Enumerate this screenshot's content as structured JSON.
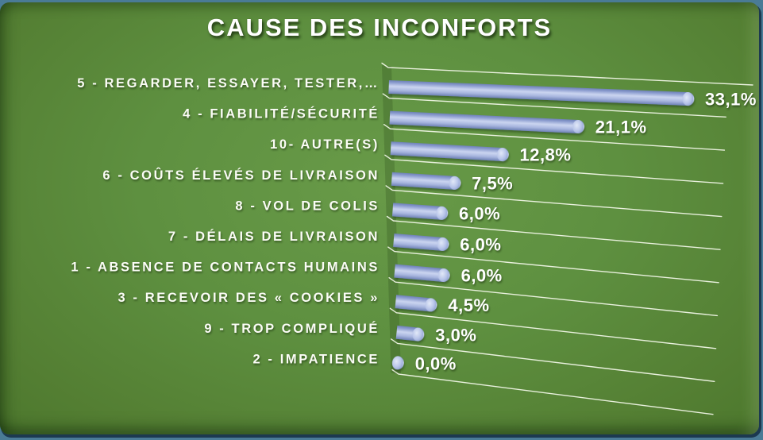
{
  "title": "CAUSE DES INCONFORTS",
  "colors": {
    "slide_background": "#4a7b96",
    "panel_green_center": "#689a48",
    "panel_green_mid": "#5e9040",
    "panel_green_edge": "#4b762c",
    "gridline": "#f0f5e6",
    "bar_body_dark": "#6e81b6",
    "bar_body_mid": "#8a9bce",
    "bar_body_light": "#cbd5f0",
    "bar_body_lower": "#a8b6df",
    "cap_light": "#e2e9f8",
    "cap_mid": "#b6c3e8",
    "cap_dark": "#8194c8",
    "text": "#ffffff",
    "bar_shadow": "#1e3a10"
  },
  "chart_data": {
    "type": "bar",
    "orientation": "horizontal",
    "style": "3d-cylinder-perspective",
    "title": "CAUSE DES INCONFORTS",
    "categories": [
      "5 - REGARDER, ESSAYER, TESTER,…",
      "4 - FIABILITÉ/SÉCURITÉ",
      "10- AUTRE(S)",
      "6 - COÛTS ÉLEVÉS DE LIVRAISON",
      "8 - VOL DE COLIS",
      "7 - DÉLAIS DE LIVRAISON",
      "1 - ABSENCE DE CONTACTS HUMAINS",
      "3 - RECEVOIR DES « COOKIES »",
      "9 - TROP COMPLIQUÉ",
      "2 - IMPATIENCE"
    ],
    "values": [
      33.1,
      21.1,
      12.8,
      7.5,
      6.0,
      6.0,
      6.0,
      4.5,
      3.0,
      0.0
    ],
    "value_labels": [
      "33,1%",
      "21,1%",
      "12,8%",
      "7,5%",
      "6,0%",
      "6,0%",
      "6,0%",
      "4,5%",
      "3,0%",
      "0,0%"
    ],
    "xlabel": "",
    "ylabel": "",
    "xlim": [
      0,
      35
    ],
    "grid": true,
    "legend": "none",
    "value_format": "percent-comma-decimal"
  }
}
